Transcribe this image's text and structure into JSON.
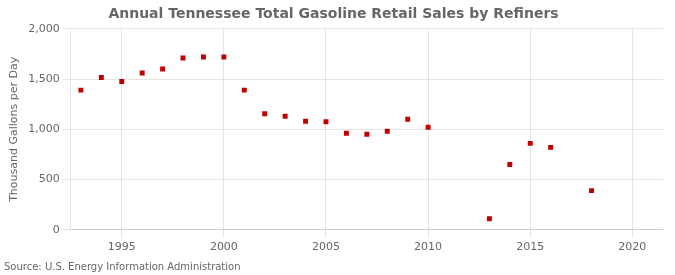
{
  "chart_data": {
    "type": "scatter",
    "title": "Annual Tennessee Total Gasoline Retail Sales by Refiners",
    "ylabel": "Thousand Gallons per Day",
    "annotation": "Source: U.S. Energy Information Administration",
    "x": [
      1993,
      1994,
      1995,
      1996,
      1997,
      1998,
      1999,
      2000,
      2001,
      2002,
      2003,
      2004,
      2005,
      2006,
      2007,
      2008,
      2009,
      2010,
      2013,
      2014,
      2015,
      2016,
      2018
    ],
    "values": [
      1390,
      1515,
      1475,
      1560,
      1600,
      1710,
      1720,
      1720,
      1390,
      1155,
      1130,
      1080,
      1075,
      960,
      950,
      980,
      1100,
      1020,
      110,
      650,
      860,
      820,
      390
    ],
    "color": "#c00000",
    "marker": "square",
    "xlim": [
      1992.5,
      2021.5
    ],
    "ylim": [
      0,
      2000
    ],
    "xticks": [
      1995,
      2000,
      2005,
      2010,
      2015,
      2020
    ],
    "yticks": [
      0,
      500,
      {
        "value": 1000,
        "label": "1,000"
      },
      {
        "value": 1500,
        "label": "1,500"
      },
      {
        "value": 2000,
        "label": "2,000"
      }
    ],
    "grid": true
  }
}
